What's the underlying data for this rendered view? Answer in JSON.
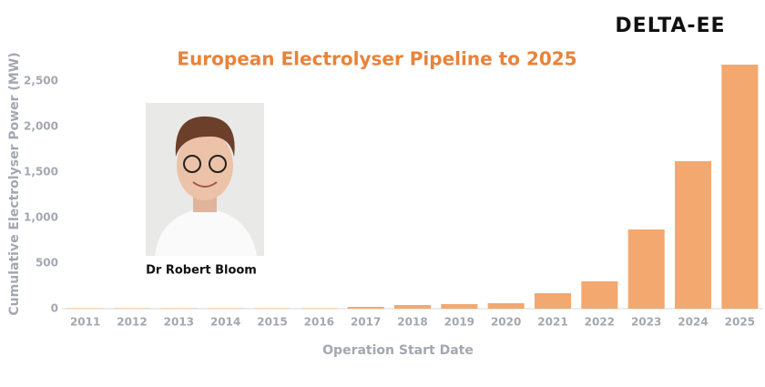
{
  "logo": "DELTA-EE",
  "caption": "Dr Robert Bloom",
  "chart_data": {
    "type": "bar",
    "title": "European Electrolyser Pipeline to 2025",
    "x_label": "Operation Start Date",
    "y_label": "Cumulative Electrolyser Power (MW)",
    "categories": [
      "2011",
      "2012",
      "2013",
      "2014",
      "2015",
      "2016",
      "2017",
      "2018",
      "2019",
      "2020",
      "2021",
      "2022",
      "2023",
      "2024",
      "2025"
    ],
    "values": [
      5,
      5,
      5,
      5,
      5,
      5,
      20,
      40,
      50,
      60,
      170,
      300,
      870,
      1620,
      2680
    ],
    "color": "#f3a86f",
    "ylim": [
      0,
      2700
    ],
    "yticks": [
      0,
      500,
      {
        "value": 1000,
        "label": "1,000"
      },
      {
        "value": 1500,
        "label": "1,500"
      },
      {
        "value": 2000,
        "label": "2,000"
      },
      {
        "value": 2500,
        "label": "2,500"
      }
    ],
    "grid": false
  }
}
